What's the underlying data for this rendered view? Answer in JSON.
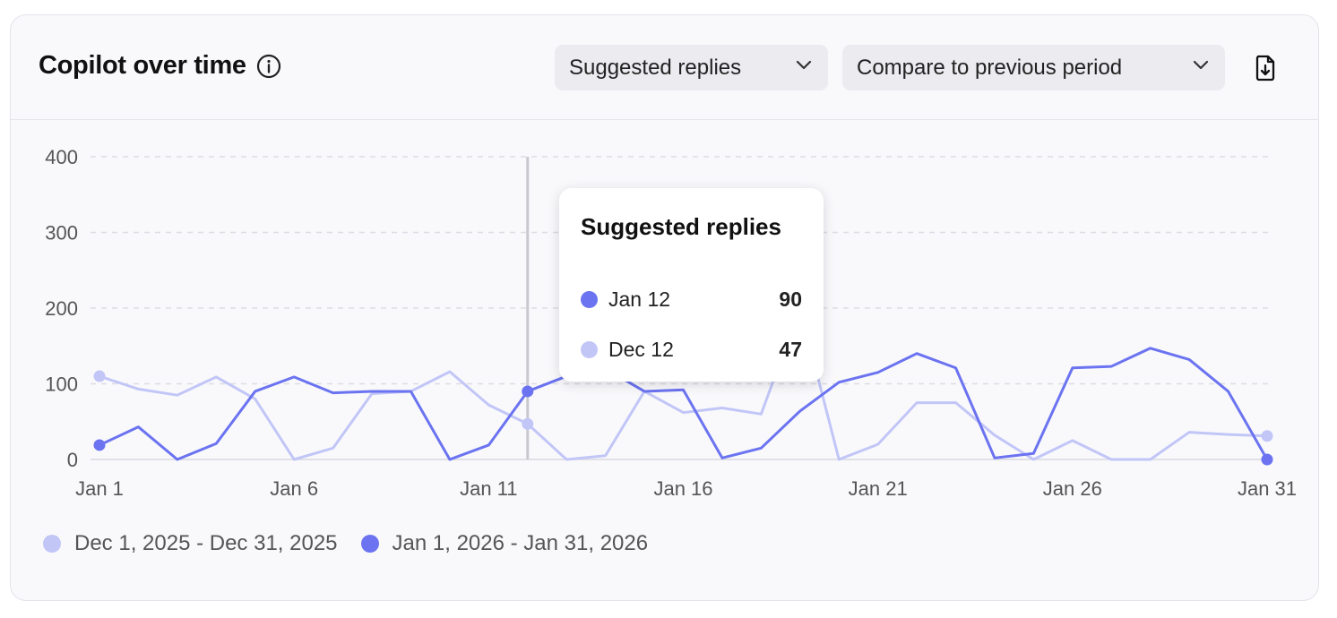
{
  "header": {
    "title": "Copilot over time",
    "metric_dropdown": "Suggested replies",
    "compare_dropdown": "Compare to previous period"
  },
  "tooltip": {
    "title": "Suggested replies",
    "rows": [
      {
        "label": "Jan 12",
        "value": "90",
        "color": "#6b73f0"
      },
      {
        "label": "Dec 12",
        "value": "47",
        "color": "#c2c6f7"
      }
    ]
  },
  "legend": [
    {
      "label": "Dec 1, 2025 - Dec 31, 2025",
      "color": "#c2c6f7"
    },
    {
      "label": "Jan 1, 2026 - Jan 31, 2026",
      "color": "#6b73f0"
    }
  ],
  "chart_data": {
    "type": "line",
    "x": [
      1,
      2,
      3,
      4,
      5,
      6,
      7,
      8,
      9,
      10,
      11,
      12,
      13,
      14,
      15,
      16,
      17,
      18,
      19,
      20,
      21,
      22,
      23,
      24,
      25,
      26,
      27,
      28,
      29,
      30,
      31
    ],
    "xticks": [
      {
        "x": 1,
        "label": "Jan 1"
      },
      {
        "x": 6,
        "label": "Jan 6"
      },
      {
        "x": 11,
        "label": "Jan 11"
      },
      {
        "x": 16,
        "label": "Jan 16"
      },
      {
        "x": 21,
        "label": "Jan 21"
      },
      {
        "x": 26,
        "label": "Jan 26"
      },
      {
        "x": 31,
        "label": "Jan 31"
      }
    ],
    "yticks": [
      0,
      100,
      200,
      300,
      400
    ],
    "ylim": [
      0,
      400
    ],
    "hover_x": 12,
    "series": [
      {
        "name": "Dec 1, 2025 - Dec 31, 2025",
        "color": "#c2c6f7",
        "values": [
          110,
          93,
          85,
          109,
          80,
          0,
          15,
          87,
          90,
          116,
          72,
          47,
          0,
          5,
          90,
          62,
          68,
          60,
          200,
          0,
          20,
          75,
          75,
          32,
          0,
          25,
          0,
          0,
          36,
          33,
          31
        ]
      },
      {
        "name": "Jan 1, 2026 - Jan 31, 2026",
        "color": "#6b73f0",
        "values": [
          19,
          43,
          0,
          21,
          90,
          109,
          88,
          90,
          90,
          0,
          19,
          90,
          110,
          120,
          90,
          92,
          2,
          15,
          64,
          102,
          115,
          140,
          121,
          2,
          8,
          121,
          123,
          147,
          132,
          90,
          0
        ]
      }
    ]
  }
}
